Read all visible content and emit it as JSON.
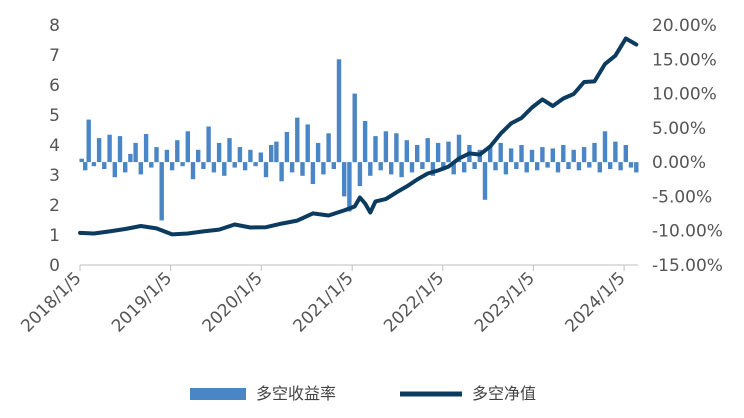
{
  "chart_data": {
    "type": "bar+line",
    "x_ticks": [
      "2018/1/5",
      "2019/1/5",
      "2020/1/5",
      "2021/1/5",
      "2022/1/5",
      "2023/1/5",
      "2024/1/5"
    ],
    "x_range": [
      "2018/1/5",
      "2024/3/1"
    ],
    "left_axis": {
      "ylim": [
        0,
        8
      ],
      "ticks": [
        "0",
        "1",
        "2",
        "3",
        "4",
        "5",
        "6",
        "7",
        "8"
      ]
    },
    "right_axis": {
      "ylim": [
        -0.15,
        0.2
      ],
      "ticks": [
        "-15.00%",
        "-10.00%",
        "-5.00%",
        "0.00%",
        "5.00%",
        "10.00%",
        "15.00%",
        "20.00%"
      ]
    },
    "grid": false,
    "legend_position": "bottom",
    "series": [
      {
        "name": "多空收益率",
        "type": "bar",
        "axis": "right",
        "color": "#4a86c5",
        "x": [
          "2018/1/12",
          "2018/1/26",
          "2018/2/9",
          "2018/3/2",
          "2018/3/23",
          "2018/4/13",
          "2018/5/4",
          "2018/5/25",
          "2018/6/15",
          "2018/7/6",
          "2018/7/27",
          "2018/8/17",
          "2018/9/7",
          "2018/9/28",
          "2018/10/19",
          "2018/11/9",
          "2018/11/30",
          "2018/12/21",
          "2019/1/11",
          "2019/2/1",
          "2019/2/22",
          "2019/3/15",
          "2019/4/5",
          "2019/4/26",
          "2019/5/17",
          "2019/6/7",
          "2019/6/28",
          "2019/7/19",
          "2019/8/9",
          "2019/8/30",
          "2019/9/20",
          "2019/10/11",
          "2019/11/1",
          "2019/11/22",
          "2019/12/13",
          "2020/1/3",
          "2020/1/24",
          "2020/2/14",
          "2020/3/6",
          "2020/3/27",
          "2020/4/17",
          "2020/5/8",
          "2020/5/29",
          "2020/6/19",
          "2020/7/10",
          "2020/7/31",
          "2020/8/21",
          "2020/9/11",
          "2020/10/2",
          "2020/10/23",
          "2020/11/13",
          "2020/12/4",
          "2020/12/25",
          "2021/1/15",
          "2021/2/5",
          "2021/2/26",
          "2021/3/19",
          "2021/4/9",
          "2021/4/30",
          "2021/5/21",
          "2021/6/11",
          "2021/7/2",
          "2021/7/23",
          "2021/8/13",
          "2021/9/3",
          "2021/9/24",
          "2021/10/15",
          "2021/11/5",
          "2021/11/26",
          "2021/12/17",
          "2022/1/7",
          "2022/1/28",
          "2022/2/18",
          "2022/3/11",
          "2022/4/1",
          "2022/4/22",
          "2022/5/13",
          "2022/6/3",
          "2022/6/24",
          "2022/7/15",
          "2022/8/5",
          "2022/8/26",
          "2022/9/16",
          "2022/10/7",
          "2022/10/28",
          "2022/11/18",
          "2022/12/9",
          "2022/12/30",
          "2023/1/20",
          "2023/2/10",
          "2023/3/3",
          "2023/3/24",
          "2023/4/14",
          "2023/5/5",
          "2023/5/26",
          "2023/6/16",
          "2023/7/7",
          "2023/7/28",
          "2023/8/18",
          "2023/9/8",
          "2023/9/29",
          "2023/10/20",
          "2023/11/10",
          "2023/12/1",
          "2023/12/22",
          "2024/1/12",
          "2024/2/2",
          "2024/2/23"
        ],
        "values": [
          0.005,
          -0.012,
          0.062,
          -0.006,
          0.035,
          -0.01,
          0.04,
          -0.022,
          0.038,
          -0.015,
          0.012,
          0.028,
          -0.018,
          0.041,
          -0.008,
          0.022,
          -0.085,
          0.018,
          -0.012,
          0.032,
          -0.006,
          0.045,
          -0.025,
          0.018,
          -0.01,
          0.052,
          -0.015,
          0.028,
          -0.02,
          0.035,
          -0.008,
          0.022,
          -0.012,
          0.018,
          -0.006,
          0.014,
          -0.022,
          0.025,
          0.03,
          -0.028,
          0.044,
          -0.015,
          0.065,
          -0.02,
          0.055,
          -0.032,
          0.028,
          -0.018,
          0.042,
          -0.01,
          0.15,
          -0.05,
          -0.072,
          0.1,
          -0.035,
          0.06,
          -0.02,
          0.038,
          -0.012,
          0.045,
          -0.018,
          0.042,
          -0.022,
          0.032,
          -0.015,
          0.025,
          -0.01,
          0.035,
          -0.02,
          0.028,
          -0.012,
          0.03,
          -0.018,
          0.04,
          -0.015,
          0.025,
          -0.01,
          0.018,
          -0.055,
          0.022,
          -0.012,
          0.028,
          -0.018,
          0.02,
          -0.01,
          0.025,
          -0.015,
          0.018,
          -0.012,
          0.022,
          -0.008,
          0.02,
          -0.015,
          0.025,
          -0.01,
          0.018,
          -0.012,
          0.022,
          -0.008,
          0.028,
          -0.015,
          0.045,
          -0.01,
          0.03,
          -0.012,
          0.025,
          -0.008,
          -0.015
        ]
      },
      {
        "name": "多空净值",
        "type": "line",
        "axis": "left",
        "color": "#0b3b5f",
        "x": [
          "2018/1/5",
          "2018/3/2",
          "2018/5/4",
          "2018/7/6",
          "2018/9/7",
          "2018/11/9",
          "2019/1/11",
          "2019/3/15",
          "2019/5/17",
          "2019/7/19",
          "2019/9/20",
          "2019/11/22",
          "2020/1/24",
          "2020/3/27",
          "2020/5/29",
          "2020/7/31",
          "2020/10/2",
          "2020/12/4",
          "2021/1/15",
          "2021/2/5",
          "2021/2/26",
          "2021/3/19",
          "2021/4/9",
          "2021/5/21",
          "2021/7/2",
          "2021/8/13",
          "2021/9/24",
          "2021/11/5",
          "2021/12/17",
          "2022/1/28",
          "2022/3/11",
          "2022/4/22",
          "2022/6/3",
          "2022/7/15",
          "2022/8/26",
          "2022/10/7",
          "2022/11/18",
          "2022/12/30",
          "2023/2/10",
          "2023/3/24",
          "2023/5/5",
          "2023/6/16",
          "2023/7/28",
          "2023/9/8",
          "2023/10/20",
          "2023/12/1",
          "2024/1/12",
          "2024/2/23"
        ],
        "values": [
          1.07,
          1.05,
          1.12,
          1.2,
          1.3,
          1.22,
          1.02,
          1.05,
          1.12,
          1.18,
          1.35,
          1.25,
          1.26,
          1.38,
          1.48,
          1.72,
          1.65,
          1.82,
          1.95,
          2.25,
          2.05,
          1.75,
          2.12,
          2.2,
          2.42,
          2.62,
          2.85,
          3.05,
          3.15,
          3.28,
          3.55,
          3.72,
          3.68,
          3.95,
          4.38,
          4.72,
          4.9,
          5.25,
          5.52,
          5.3,
          5.55,
          5.7,
          6.1,
          6.12,
          6.7,
          6.98,
          7.55,
          7.35
        ]
      }
    ]
  }
}
